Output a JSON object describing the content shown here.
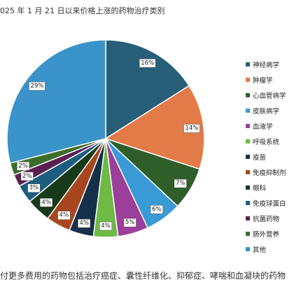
{
  "chart_data": {
    "type": "pie",
    "title": "025 年 1 月 21 日以来价格上涨的药物治疗类别",
    "footnote": "付更多费用的药物包括治疗癌症、囊性纤维化、抑郁症、哮喘和血凝块的药物",
    "legend_position": "right",
    "series": [
      {
        "name": "神经病学",
        "value": 16,
        "label": "16%",
        "color": "#275e78"
      },
      {
        "name": "肿瘤学",
        "value": 14,
        "label": "14%",
        "color": "#e27b47"
      },
      {
        "name": "心血管病学",
        "value": 7,
        "label": "7%",
        "color": "#2f5e2b"
      },
      {
        "name": "皮肤病学",
        "value": 6,
        "label": "6%",
        "color": "#3a9ad6"
      },
      {
        "name": "血液学",
        "value": 5,
        "label": "5%",
        "color": "#9b3f9a"
      },
      {
        "name": "呼吸系统",
        "value": 4,
        "label": "4%",
        "color": "#6fba45"
      },
      {
        "name": "疫苗",
        "value": 4,
        "label": "4%",
        "color": "#14304a"
      },
      {
        "name": "免疫抑制剂",
        "value": 4,
        "label": "4%",
        "color": "#a8471f"
      },
      {
        "name": "眼科",
        "value": 4,
        "label": "4%",
        "color": "#163a1a"
      },
      {
        "name": "免疫球蛋白",
        "value": 3,
        "label": "3%",
        "color": "#1c5d80"
      },
      {
        "name": "抗菌药物",
        "value": 2,
        "label": "2%",
        "color": "#5b1f52"
      },
      {
        "name": "肠外营养",
        "value": 2,
        "label": "2%",
        "color": "#3c6e2a"
      },
      {
        "name": "其他",
        "value": 29,
        "label": "29%",
        "color": "#3a93c9"
      }
    ]
  }
}
